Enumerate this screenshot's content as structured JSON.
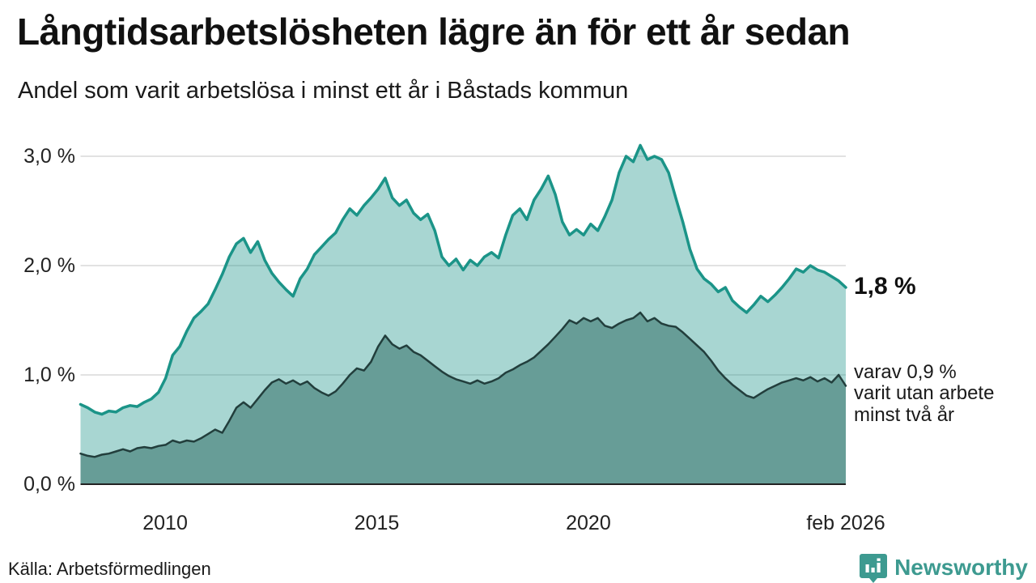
{
  "header": {
    "title": "Långtidsarbetslösheten lägre än för ett år sedan",
    "subtitle": "Andel som varit arbetslösa i minst ett år i Båstads kommun"
  },
  "chart_data": {
    "type": "area",
    "title": "Långtidsarbetslösheten lägre än för ett år sedan",
    "subtitle": "Andel som varit arbetslösa i minst ett år i Båstads kommun",
    "unit": "%",
    "x_domain": {
      "start_year": 2008.0,
      "end_year": 2026.083,
      "points_per_year": 6
    },
    "ylim": [
      0,
      3.2
    ],
    "grid": true,
    "x_ticks": [
      {
        "year": 2010,
        "label": "2010"
      },
      {
        "year": 2015,
        "label": "2015"
      },
      {
        "year": 2020,
        "label": "2020"
      },
      {
        "year": 2026.083,
        "label": "feb 2026"
      }
    ],
    "y_ticks": [
      {
        "value": 0,
        "label": "0,0 %"
      },
      {
        "value": 1,
        "label": "1,0 %"
      },
      {
        "value": 2,
        "label": "2,0 %"
      },
      {
        "value": 3,
        "label": "3,0 %"
      }
    ],
    "series": [
      {
        "name": "Andel som varit arbetslösa i minst ett år",
        "line_color": "#1b9488",
        "fill_color": "rgba(27,148,136,0.38)",
        "end_value_label": "1,8 %",
        "values": [
          0.73,
          0.7,
          0.66,
          0.64,
          0.67,
          0.66,
          0.7,
          0.72,
          0.71,
          0.75,
          0.78,
          0.84,
          0.97,
          1.18,
          1.26,
          1.4,
          1.52,
          1.58,
          1.65,
          1.78,
          1.92,
          2.08,
          2.2,
          2.25,
          2.12,
          2.22,
          2.05,
          1.93,
          1.85,
          1.78,
          1.72,
          1.88,
          1.97,
          2.1,
          2.17,
          2.24,
          2.3,
          2.42,
          2.52,
          2.46,
          2.55,
          2.62,
          2.7,
          2.8,
          2.62,
          2.55,
          2.6,
          2.48,
          2.42,
          2.47,
          2.32,
          2.08,
          2.0,
          2.06,
          1.96,
          2.05,
          2.0,
          2.08,
          2.12,
          2.07,
          2.28,
          2.46,
          2.52,
          2.42,
          2.6,
          2.7,
          2.82,
          2.65,
          2.4,
          2.28,
          2.33,
          2.28,
          2.38,
          2.32,
          2.45,
          2.6,
          2.85,
          3.0,
          2.95,
          3.1,
          2.97,
          3.0,
          2.97,
          2.85,
          2.62,
          2.4,
          2.15,
          1.97,
          1.88,
          1.83,
          1.76,
          1.8,
          1.68,
          1.62,
          1.57,
          1.64,
          1.72,
          1.67,
          1.73,
          1.8,
          1.88,
          1.97,
          1.94,
          2.0,
          1.96,
          1.94,
          1.9,
          1.86,
          1.8
        ]
      },
      {
        "name": "varav utan arbete minst två år",
        "line_color": "#223e3c",
        "fill_color": "#679d97",
        "end_value_label": "0,9 %",
        "values": [
          0.28,
          0.26,
          0.25,
          0.27,
          0.28,
          0.3,
          0.32,
          0.3,
          0.33,
          0.34,
          0.33,
          0.35,
          0.36,
          0.4,
          0.38,
          0.4,
          0.39,
          0.42,
          0.46,
          0.5,
          0.47,
          0.58,
          0.7,
          0.75,
          0.7,
          0.78,
          0.86,
          0.93,
          0.96,
          0.92,
          0.95,
          0.91,
          0.94,
          0.88,
          0.84,
          0.81,
          0.85,
          0.92,
          1.0,
          1.06,
          1.04,
          1.12,
          1.26,
          1.36,
          1.28,
          1.24,
          1.27,
          1.21,
          1.18,
          1.13,
          1.08,
          1.03,
          0.99,
          0.96,
          0.94,
          0.92,
          0.95,
          0.92,
          0.94,
          0.97,
          1.02,
          1.05,
          1.09,
          1.12,
          1.16,
          1.22,
          1.28,
          1.35,
          1.42,
          1.5,
          1.47,
          1.52,
          1.49,
          1.52,
          1.45,
          1.43,
          1.47,
          1.5,
          1.52,
          1.57,
          1.49,
          1.52,
          1.47,
          1.45,
          1.44,
          1.39,
          1.33,
          1.27,
          1.21,
          1.13,
          1.04,
          0.97,
          0.91,
          0.86,
          0.81,
          0.79,
          0.83,
          0.87,
          0.9,
          0.93,
          0.95,
          0.97,
          0.95,
          0.98,
          0.94,
          0.97,
          0.93,
          1.0,
          0.9
        ]
      }
    ],
    "annotations": {
      "total_label": "1,8 %",
      "secondary_label": "varav 0,9 %\nvarit utan arbete\nminst två år"
    },
    "legend_position": "right-annotations"
  },
  "footer": {
    "source": "Källa: Arbetsförmedlingen",
    "brand": "Newsworthy"
  },
  "colors": {
    "line_total": "#1b9488",
    "fill_total": "rgba(27,148,136,0.38)",
    "line_two_years": "#223e3c",
    "fill_two_years": "#679d97",
    "gridline": "#d9d9d9",
    "axis_baseline": "#222222",
    "text": "#1a1a1a",
    "brand": "#3d9a90"
  },
  "icons": {
    "brand_logo": "newsworthy-speech-bubble-bar-chart-icon"
  }
}
